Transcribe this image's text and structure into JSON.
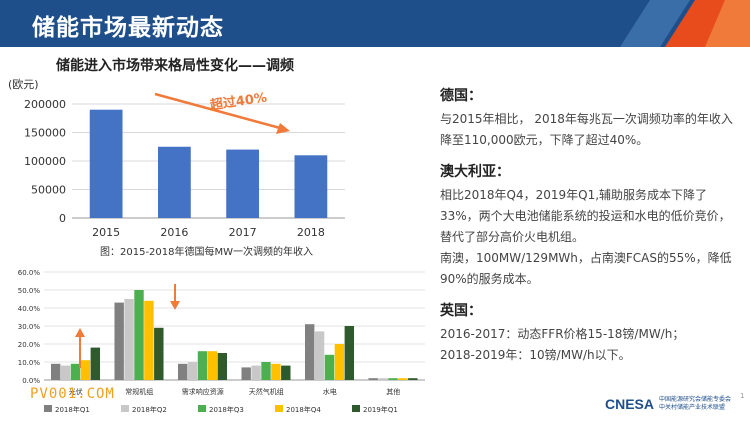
{
  "header": {
    "title": "储能市场最新动态"
  },
  "subtitle": "储能进入市场带来格局性变化——调频",
  "chart_data": [
    {
      "type": "bar",
      "ylabel": "(欧元)",
      "categories": [
        "2015",
        "2016",
        "2017",
        "2018"
      ],
      "values": [
        190000,
        125000,
        120000,
        110000
      ],
      "ylim": [
        0,
        200000
      ],
      "yticks": [
        "0",
        "50000",
        "100000",
        "150000",
        "200000"
      ],
      "annotation": "超过40%",
      "caption": "图：2015-2018年德国每MW一次调频的年收入",
      "color": "#4472c4",
      "grid": true
    },
    {
      "type": "bar",
      "categories": [
        "光伏",
        "常规机组",
        "需求响应资源",
        "天然气机组",
        "水电",
        "其他"
      ],
      "series": [
        {
          "name": "2018年Q1",
          "values": [
            9,
            43,
            9,
            7,
            31,
            1
          ],
          "color": "#808080"
        },
        {
          "name": "2018年Q2",
          "values": [
            8,
            45,
            10,
            8,
            27,
            1
          ],
          "color": "#c8c8c8"
        },
        {
          "name": "2018年Q3",
          "values": [
            9,
            50,
            16,
            10,
            14,
            1
          ],
          "color": "#4caf50"
        },
        {
          "name": "2018年Q4",
          "values": [
            11,
            44,
            16,
            9,
            20,
            1
          ],
          "color": "#ffc000"
        },
        {
          "name": "2019年Q1",
          "values": [
            18,
            29,
            15,
            8,
            30,
            1
          ],
          "color": "#2e5a2e"
        }
      ],
      "ylim": [
        0,
        60
      ],
      "yticks": [
        "0.0%",
        "10.0%",
        "20.0%",
        "30.0%",
        "40.0%",
        "50.0%",
        "60.0%"
      ],
      "legend": "bottom",
      "grid": true
    }
  ],
  "sections": [
    {
      "title": "德国：",
      "paras": [
        "与2015年相比， 2018年每兆瓦一次调频功率的年收入降至110,000欧元，下降了超过40%。"
      ]
    },
    {
      "title": "澳大利亚：",
      "paras": [
        "相比2018年Q4，2019年Q1,辅助服务成本下降了33%，两个大电池储能系统的投运和水电的低价竞价，替代了部分高价火电机组。",
        "南澳，100MW/129MWh，占南澳FCAS的55%，降低90%的服务成本。"
      ]
    },
    {
      "title": "英国：",
      "paras": [
        "2016-2017：动态FFR价格15-18镑/MW/h；",
        "2018-2019年：10镑/MW/h以下。"
      ]
    }
  ],
  "watermark": "PV001.COM",
  "logo": {
    "name": "CNESA",
    "line1": "中国能源研究会储能专委会",
    "line2": "中关村储能产业技术联盟"
  },
  "page_number": "1"
}
